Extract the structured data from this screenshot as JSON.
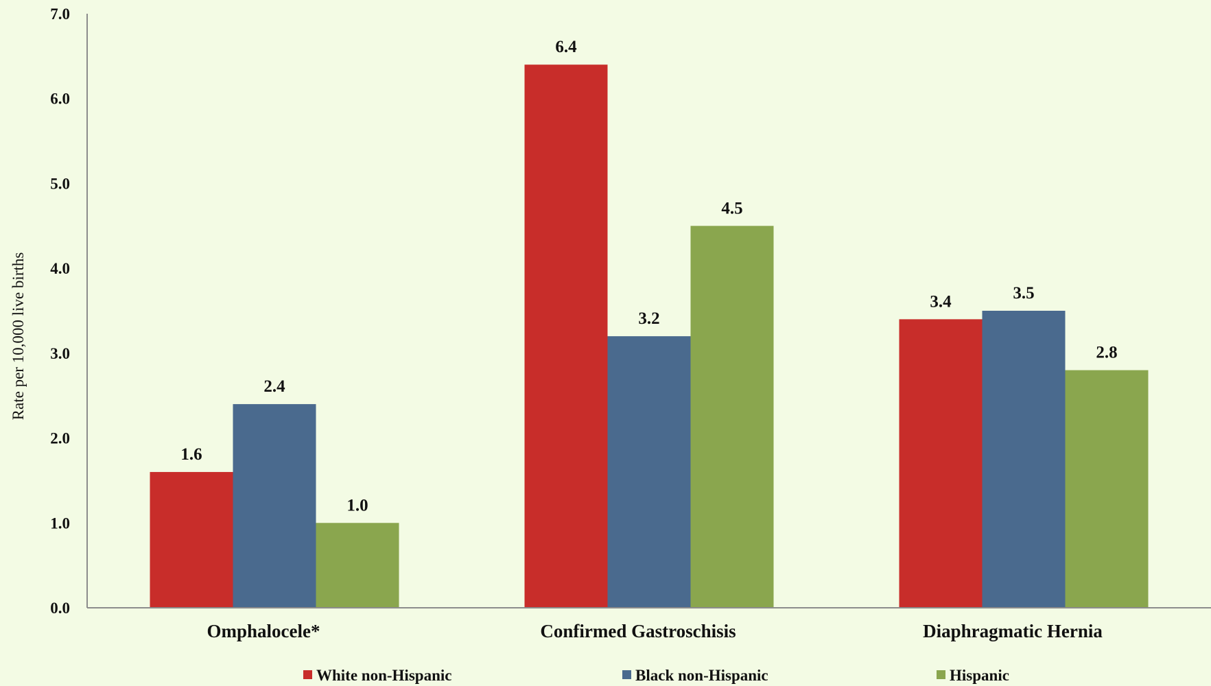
{
  "chart_data": {
    "type": "bar",
    "title": "",
    "xlabel": "",
    "ylabel": "Rate per 10,000 live births",
    "ylim": [
      0,
      7
    ],
    "yticks": [
      "0.0",
      "1.0",
      "2.0",
      "3.0",
      "4.0",
      "5.0",
      "6.0",
      "7.0"
    ],
    "grid": false,
    "legend_position": "bottom",
    "categories": [
      "Omphalocele*",
      "Confirmed Gastroschisis",
      "Diaphragmatic Hernia"
    ],
    "series": [
      {
        "name": "White non-Hispanic",
        "color": "#c82d2a",
        "values": [
          1.6,
          6.4,
          3.4
        ],
        "labels": [
          "1.6",
          "6.4",
          "3.4"
        ]
      },
      {
        "name": "Black non-Hispanic",
        "color": "#4a6a8e",
        "values": [
          2.4,
          3.2,
          3.5
        ],
        "labels": [
          "2.4",
          "3.2",
          "3.5"
        ]
      },
      {
        "name": "Hispanic",
        "color": "#8aa64e",
        "values": [
          1.0,
          4.5,
          2.8
        ],
        "labels": [
          "1.0",
          "4.5",
          "2.8"
        ]
      }
    ]
  }
}
